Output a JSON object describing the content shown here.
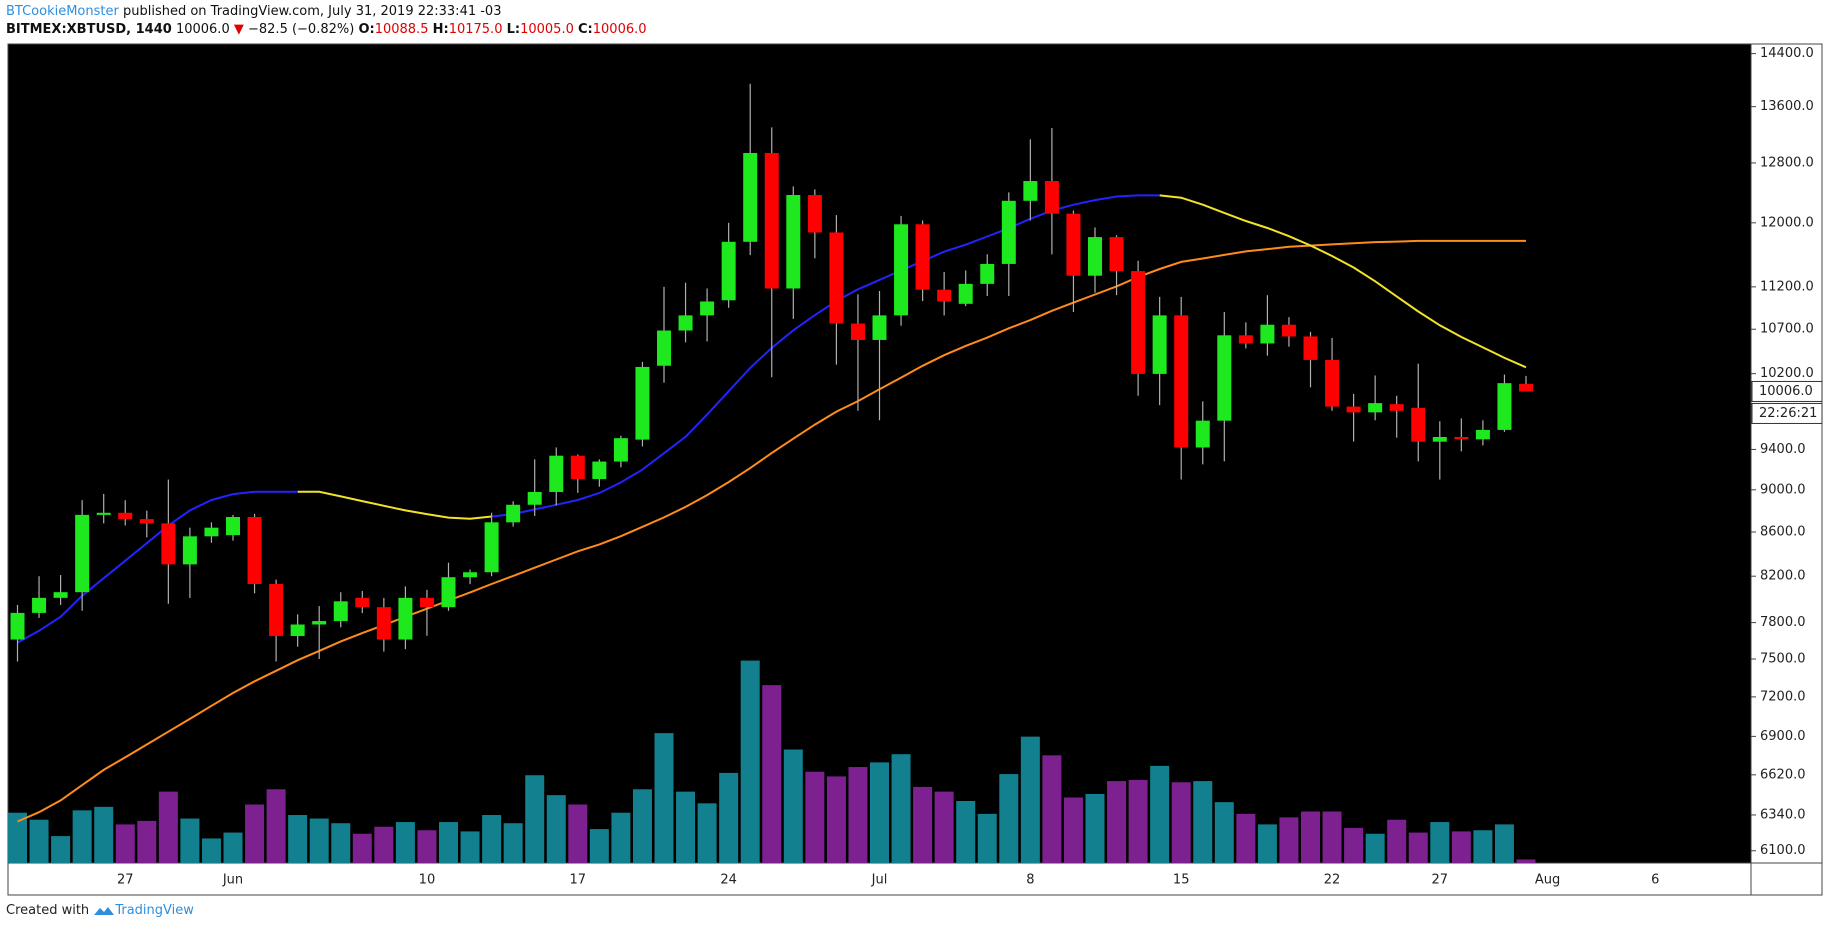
{
  "header": {
    "author": "BTCookieMonster",
    "published": "published on TradingView.com, July 31, 2019 22:33:41 -03",
    "symbol": "BITMEX:XBTUSD, 1440",
    "last": "10006.0",
    "arrow": "▼",
    "change": "−82.5 (−0.82%)",
    "o_label": "O:",
    "o": "10088.5",
    "h_label": "H:",
    "h": "10175.0",
    "l_label": "L:",
    "l": "10005.0",
    "c_label": "C:",
    "c": "10006.0"
  },
  "chart_data": {
    "type": "candlestick",
    "log": true,
    "grid": false,
    "up_color": "#1ee81e",
    "down_color": "#ff0000",
    "categories": [
      null,
      null,
      null,
      null,
      null,
      "27",
      null,
      null,
      null,
      null,
      "Jun",
      null,
      null,
      null,
      null,
      null,
      null,
      null,
      null,
      "10",
      null,
      null,
      null,
      null,
      null,
      null,
      "17",
      null,
      null,
      null,
      null,
      null,
      null,
      "24",
      null,
      null,
      null,
      null,
      null,
      null,
      "Jul",
      null,
      null,
      null,
      null,
      null,
      null,
      "8",
      null,
      null,
      null,
      null,
      null,
      null,
      "15",
      null,
      null,
      null,
      null,
      null,
      null,
      "22",
      null,
      null,
      null,
      null,
      "27",
      null,
      null,
      null,
      null,
      "Aug",
      null,
      null,
      null,
      null,
      "6",
      null,
      null,
      null,
      null
    ],
    "open": [
      7659,
      7882,
      8011,
      8060,
      8760,
      8780,
      8720,
      8680,
      8305,
      8560,
      8571,
      8740,
      8131,
      7688,
      7784,
      7813,
      8011,
      7931,
      7659,
      8011,
      7931,
      8191,
      8235,
      8690,
      8856,
      8979,
      9337,
      9105,
      9278,
      9500,
      10287,
      10685,
      10861,
      11039,
      11757,
      12938,
      11180,
      12365,
      11876,
      10766,
      10577,
      10861,
      11981,
      11166,
      10997,
      11236,
      11480,
      12288,
      12553,
      12119,
      11335,
      11817,
      11392,
      10197,
      10861,
      9420,
      9696,
      10630,
      10537,
      10752,
      10617,
      10352,
      9844,
      9783,
      9870,
      9831,
      9479,
      9527,
      9503,
      9600,
      10088.5,
      null,
      null,
      null,
      null,
      null,
      null,
      null,
      null,
      null,
      null
    ],
    "high": [
      7950,
      8200,
      8210,
      8900,
      8960,
      8900,
      8800,
      9100,
      8640,
      8690,
      8760,
      8770,
      8170,
      7870,
      7940,
      8060,
      8070,
      8010,
      8110,
      8080,
      8320,
      8260,
      8780,
      8890,
      9300,
      9420,
      9350,
      9300,
      9540,
      10330,
      11200,
      11250,
      11180,
      12000,
      13940,
      13300,
      12480,
      12440,
      12100,
      11110,
      11150,
      12090,
      12030,
      11380,
      11400,
      11600,
      12400,
      13130,
      13290,
      12160,
      11940,
      11840,
      11520,
      11080,
      11080,
      9900,
      10900,
      10780,
      11100,
      10840,
      10670,
      10600,
      9980,
      10180,
      9960,
      10310,
      9690,
      9720,
      9700,
      10190,
      10175,
      null,
      null,
      null,
      null,
      null,
      null,
      null,
      null,
      null,
      null
    ],
    "low": [
      7480,
      7840,
      7950,
      7900,
      8680,
      8660,
      8550,
      7960,
      8010,
      8500,
      8520,
      8050,
      7480,
      7600,
      7500,
      7760,
      7880,
      7560,
      7580,
      7690,
      7900,
      8130,
      8200,
      8650,
      8750,
      8850,
      8970,
      9030,
      9220,
      9430,
      10100,
      10550,
      10560,
      10950,
      11590,
      10160,
      10820,
      11550,
      10300,
      9800,
      9700,
      10740,
      11030,
      10860,
      10970,
      11090,
      11090,
      12030,
      11600,
      10900,
      11130,
      11100,
      9960,
      9860,
      9100,
      9250,
      9280,
      10480,
      10400,
      10500,
      10050,
      9800,
      9480,
      9700,
      9520,
      9280,
      9100,
      9380,
      9440,
      9580,
      10005,
      null,
      null,
      null,
      null,
      null,
      null,
      null,
      null,
      null,
      null
    ],
    "close": [
      7882,
      8011,
      8060,
      8760,
      8780,
      8720,
      8680,
      8305,
      8560,
      8640,
      8740,
      8131,
      7688,
      7784,
      7813,
      7981,
      7931,
      7659,
      8011,
      7931,
      8191,
      8235,
      8690,
      8856,
      8979,
      9337,
      9105,
      9278,
      9515,
      10274,
      10685,
      10861,
      11025,
      11757,
      12938,
      11180,
      12365,
      11876,
      10766,
      10577,
      10861,
      11981,
      11166,
      11025,
      11236,
      11480,
      12288,
      12553,
      12119,
      11335,
      11817,
      11392,
      10197,
      10861,
      9420,
      9696,
      10630,
      10537,
      10752,
      10617,
      10352,
      9844,
      9783,
      9881,
      9800,
      9479,
      9527,
      9503,
      9600,
      10096,
      10006,
      null,
      null,
      null,
      null,
      null,
      null,
      null,
      null,
      null,
      null
    ],
    "volume": {
      "up_color": "#12808e",
      "down_color": "#7d2191",
      "values": [
        43,
        37,
        23,
        45,
        48,
        33,
        36,
        61,
        38,
        21,
        26,
        50,
        63,
        41,
        38,
        34,
        25,
        31,
        35,
        28,
        35,
        27,
        41,
        34,
        75,
        58,
        50,
        29,
        43,
        63,
        111,
        61,
        51,
        77,
        173,
        152,
        97,
        78,
        74,
        82,
        86,
        93,
        65,
        61,
        53,
        42,
        76,
        108,
        92,
        56,
        59,
        70,
        71,
        83,
        69,
        70,
        52,
        42,
        33,
        39,
        44,
        44,
        30,
        25,
        37,
        26,
        35,
        27,
        28,
        33,
        3,
        null,
        null,
        null,
        null,
        null,
        null,
        null,
        null,
        null,
        null
      ]
    },
    "y2lim": [
      0,
      200
    ],
    "lines": [
      {
        "color": "#ff8c1a",
        "values": [
          6295,
          6359,
          6440,
          6547,
          6655,
          6746,
          6840,
          6935,
          7031,
          7131,
          7230,
          7322,
          7405,
          7490,
          7566,
          7644,
          7712,
          7780,
          7849,
          7918,
          7988,
          8058,
          8131,
          8203,
          8275,
          8349,
          8423,
          8486,
          8561,
          8648,
          8736,
          8836,
          8949,
          9075,
          9213,
          9365,
          9509,
          9655,
          9791,
          9903,
          10029,
          10157,
          10287,
          10405,
          10510,
          10604,
          10711,
          10806,
          10915,
          11011,
          11108,
          11206,
          11319,
          11418,
          11505,
          11548,
          11592,
          11636,
          11665,
          11694,
          11709,
          11724,
          11738,
          11753,
          11760,
          11768,
          11768,
          11768,
          11768,
          11768,
          11768,
          null,
          null,
          null,
          null,
          null,
          null,
          null,
          null,
          null,
          null
        ]
      },
      {
        "color": "#2323ff",
        "values": [
          7634,
          7731,
          7849,
          8029,
          8182,
          8338,
          8497,
          8659,
          8802,
          8902,
          8958,
          8981,
          8981,
          8981,
          null,
          null,
          null,
          null,
          null,
          null,
          null,
          null,
          8745,
          8767,
          8812,
          8856,
          8902,
          8969,
          9072,
          9198,
          9362,
          9529,
          9760,
          10008,
          10263,
          10487,
          10688,
          10864,
          11030,
          11171,
          11284,
          11399,
          11515,
          11632,
          11721,
          11825,
          11930,
          12052,
          12159,
          12236,
          12298,
          12345,
          12360,
          12360,
          null,
          null,
          null,
          null,
          null,
          null,
          null,
          null,
          null,
          null,
          null,
          null,
          null,
          null,
          null,
          null,
          null,
          null,
          null,
          null,
          null,
          null,
          null,
          null,
          null,
          null,
          null
        ]
      },
      {
        "color": "#f2e32a",
        "values": [
          null,
          null,
          null,
          null,
          null,
          null,
          null,
          null,
          null,
          null,
          null,
          null,
          null,
          8981,
          8981,
          8936,
          8891,
          8846,
          8802,
          8767,
          8734,
          8723,
          8745,
          null,
          null,
          null,
          null,
          null,
          null,
          null,
          null,
          null,
          null,
          null,
          null,
          null,
          null,
          null,
          null,
          null,
          null,
          null,
          null,
          null,
          null,
          null,
          null,
          null,
          null,
          null,
          null,
          null,
          null,
          12360,
          12329,
          12236,
          12129,
          12023,
          11933,
          11828,
          11710,
          11579,
          11436,
          11267,
          11085,
          10906,
          10745,
          10611,
          10492,
          10375,
          10270,
          null,
          null,
          null,
          null,
          null,
          null,
          null,
          null,
          null,
          null
        ]
      }
    ],
    "ylim": [
      6020,
      14550
    ],
    "yticks": [
      {
        "value": 14400,
        "label": "14400.0"
      },
      {
        "value": 13600,
        "label": "13600.0"
      },
      {
        "value": 12800,
        "label": "12800.0"
      },
      {
        "value": 12000,
        "label": "12000.0"
      },
      {
        "value": 11200,
        "label": "11200.0"
      },
      {
        "value": 10700,
        "label": "10700.0"
      },
      {
        "value": 10200,
        "label": "10200.0"
      },
      {
        "value": 9400,
        "label": "9400.0"
      },
      {
        "value": 9000,
        "label": "9000.0"
      },
      {
        "value": 8600,
        "label": "8600.0"
      },
      {
        "value": 8200,
        "label": "8200.0"
      },
      {
        "value": 7800,
        "label": "7800.0"
      },
      {
        "value": 7500,
        "label": "7500.0"
      },
      {
        "value": 7200,
        "label": "7200.0"
      },
      {
        "value": 6900,
        "label": "6900.0"
      },
      {
        "value": 6620,
        "label": "6620.0"
      },
      {
        "value": 6340,
        "label": "6340.0"
      },
      {
        "value": 6100,
        "label": "6100.0"
      }
    ],
    "last_price_label": "10006.0",
    "countdown": "22:26:21"
  },
  "footer": {
    "created": "Created with",
    "brand": "TradingView"
  }
}
